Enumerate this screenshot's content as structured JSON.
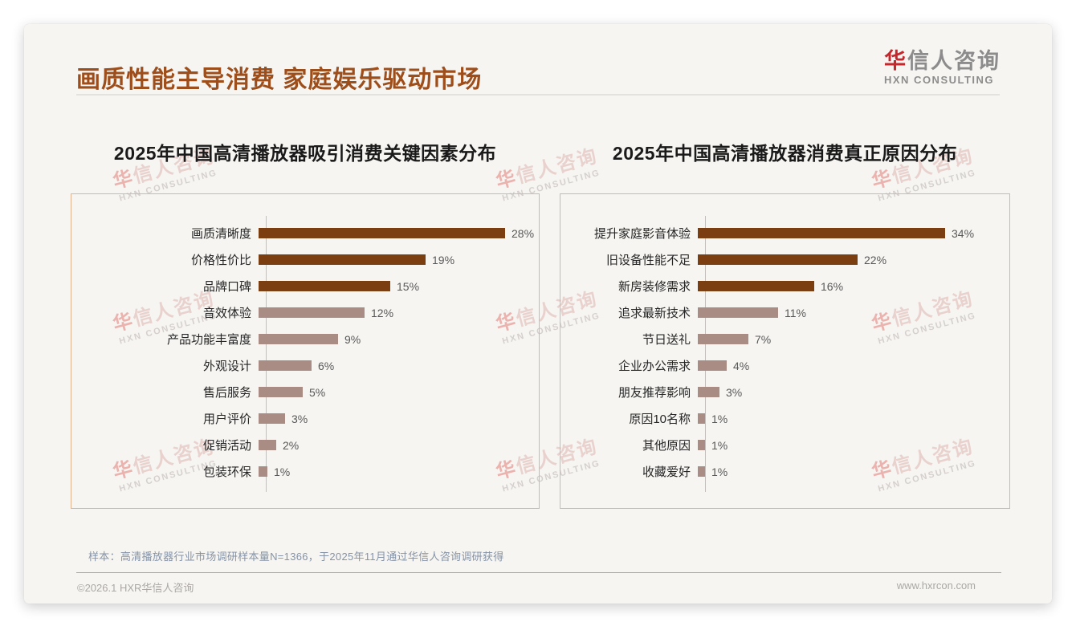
{
  "page": {
    "title": "画质性能主导消费 家庭娱乐驱动市场",
    "logo": {
      "accent": "华",
      "rest": "信人咨询",
      "subtitle": "HXN CONSULTING"
    },
    "watermark": {
      "accent": "华",
      "rest": "信人咨询",
      "line2": "HXN CONSULTING"
    },
    "sample_note": "样本：高清播放器行业市场调研样本量N=1366，于2025年11月通过华信人咨询调研获得",
    "footer": {
      "copyright": "©2026.1 HXR华信人咨询",
      "website": "www.hxrcon.com"
    }
  },
  "colors": {
    "title_accent": "#9E4E1A",
    "logo_red": "#C4282D",
    "panel_border": "#E0B48E",
    "bar_primary": "#7B3E10",
    "bar_secondary": "#A98D84",
    "sample_note_text": "#8593A7",
    "footer_line": "#C9A183"
  },
  "chart_data": [
    {
      "type": "bar",
      "orientation": "horizontal",
      "title": "2025年中国高清播放器吸引消费关键因素分布",
      "unit": "%",
      "sorted": "descending",
      "data_labels": true,
      "value_axis_visible": false,
      "xlim": [
        0,
        31
      ],
      "highlight_count": 3,
      "bar_color_primary": "#7B3E10",
      "bar_color_secondary": "#A98D84",
      "categories": [
        "画质清晰度",
        "价格性价比",
        "品牌口碑",
        "音效体验",
        "产品功能丰富度",
        "外观设计",
        "售后服务",
        "用户评价",
        "促销活动",
        "包装环保"
      ],
      "values": [
        28,
        19,
        15,
        12,
        9,
        6,
        5,
        3,
        2,
        1
      ]
    },
    {
      "type": "bar",
      "orientation": "horizontal",
      "title": "2025年中国高清播放器消费真正原因分布",
      "unit": "%",
      "sorted": "descending",
      "data_labels": true,
      "value_axis_visible": false,
      "xlim": [
        0,
        38
      ],
      "highlight_count": 3,
      "bar_color_primary": "#7B3E10",
      "bar_color_secondary": "#A98D84",
      "categories": [
        "提升家庭影音体验",
        "旧设备性能不足",
        "新房装修需求",
        "追求最新技术",
        "节日送礼",
        "企业办公需求",
        "朋友推荐影响",
        "原因10名称",
        "其他原因",
        "收藏爱好"
      ],
      "values": [
        34,
        22,
        16,
        11,
        7,
        4,
        3,
        1,
        1,
        1
      ]
    }
  ]
}
